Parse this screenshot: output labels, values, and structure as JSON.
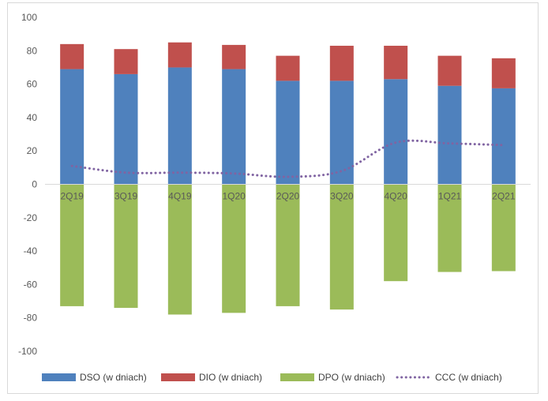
{
  "chart_data": {
    "type": "bar",
    "stacked": true,
    "categories": [
      "2Q19",
      "3Q19",
      "4Q19",
      "1Q20",
      "2Q20",
      "3Q20",
      "4Q20",
      "1Q21",
      "2Q21"
    ],
    "series": [
      {
        "name": "DSO (w dniach)",
        "kind": "bar",
        "color": "#4f81bd",
        "values": [
          69,
          66,
          70,
          69,
          62,
          62,
          63,
          59,
          57.5
        ]
      },
      {
        "name": "DIO (w dniach)",
        "kind": "bar",
        "color": "#c0504d",
        "values": [
          15,
          15,
          15,
          14.5,
          15,
          21,
          20,
          18,
          18
        ]
      },
      {
        "name": "DPO (w dniach)",
        "kind": "bar",
        "color": "#9bbb59",
        "values": [
          -73,
          -74,
          -78,
          -77,
          -73,
          -75,
          -58,
          -52.5,
          -52
        ]
      },
      {
        "name": "CCC (w dniach)",
        "kind": "line",
        "style": "dotted",
        "color": "#8064a2",
        "values": [
          11,
          7,
          7,
          6.5,
          4.5,
          8,
          25,
          24.5,
          23.5
        ]
      }
    ],
    "ylim": [
      -100,
      100
    ],
    "yticks": [
      100,
      80,
      60,
      40,
      20,
      0,
      -20,
      -40,
      -60,
      -80,
      -100
    ],
    "grid": false,
    "legend_position": "bottom"
  }
}
